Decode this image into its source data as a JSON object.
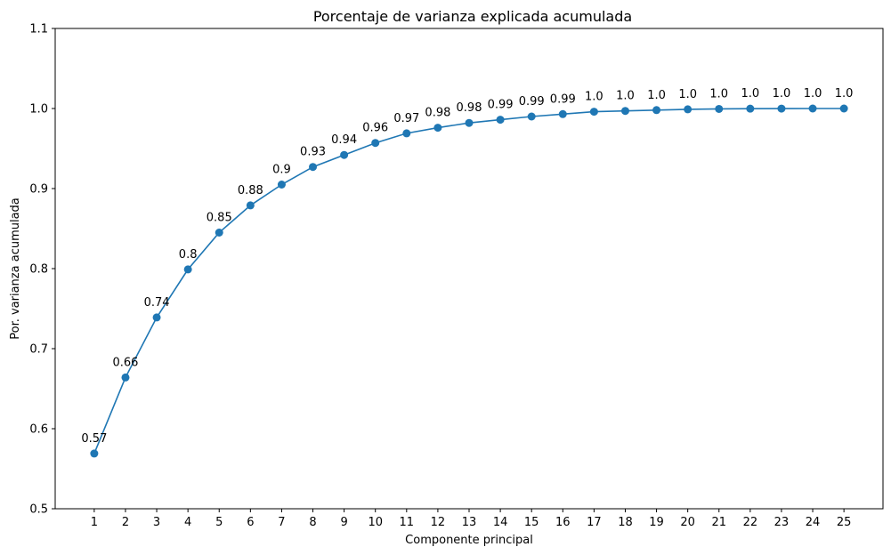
{
  "chart_data": {
    "type": "line",
    "title": "Porcentaje de varianza explicada acumulada",
    "xlabel": "Componente principal",
    "ylabel": "Por. varianza acumulada",
    "x": [
      1,
      2,
      3,
      4,
      5,
      6,
      7,
      8,
      9,
      10,
      11,
      12,
      13,
      14,
      15,
      16,
      17,
      18,
      19,
      20,
      21,
      22,
      23,
      24,
      25
    ],
    "values": [
      0.569,
      0.664,
      0.739,
      0.799,
      0.845,
      0.879,
      0.905,
      0.927,
      0.942,
      0.957,
      0.969,
      0.976,
      0.982,
      0.986,
      0.99,
      0.993,
      0.996,
      0.997,
      0.998,
      0.999,
      0.9995,
      0.9998,
      0.9999,
      1.0,
      1.0
    ],
    "data_labels": [
      "0.57",
      "0.66",
      "0.74",
      "0.8",
      "0.85",
      "0.88",
      "0.9",
      "0.93",
      "0.94",
      "0.96",
      "0.97",
      "0.98",
      "0.98",
      "0.99",
      "0.99",
      "0.99",
      "1.0",
      "1.0",
      "1.0",
      "1.0",
      "1.0",
      "1.0",
      "1.0",
      "1.0",
      "1.0"
    ],
    "x_ticks": [
      "1",
      "2",
      "3",
      "4",
      "5",
      "6",
      "7",
      "8",
      "9",
      "10",
      "11",
      "12",
      "13",
      "14",
      "15",
      "16",
      "17",
      "18",
      "19",
      "20",
      "21",
      "22",
      "23",
      "24",
      "25"
    ],
    "y_ticks": [
      0.5,
      0.6,
      0.7,
      0.8,
      0.9,
      1.0,
      1.1
    ],
    "y_tick_labels": [
      "0.5",
      "0.6",
      "0.7",
      "0.8",
      "0.9",
      "1.0",
      "1.1"
    ],
    "xlim": [
      -0.25,
      26.25
    ],
    "ylim": [
      0.5,
      1.1
    ],
    "grid": false,
    "colors": {
      "line": "#1f77b4",
      "marker": "#1f77b4"
    }
  }
}
